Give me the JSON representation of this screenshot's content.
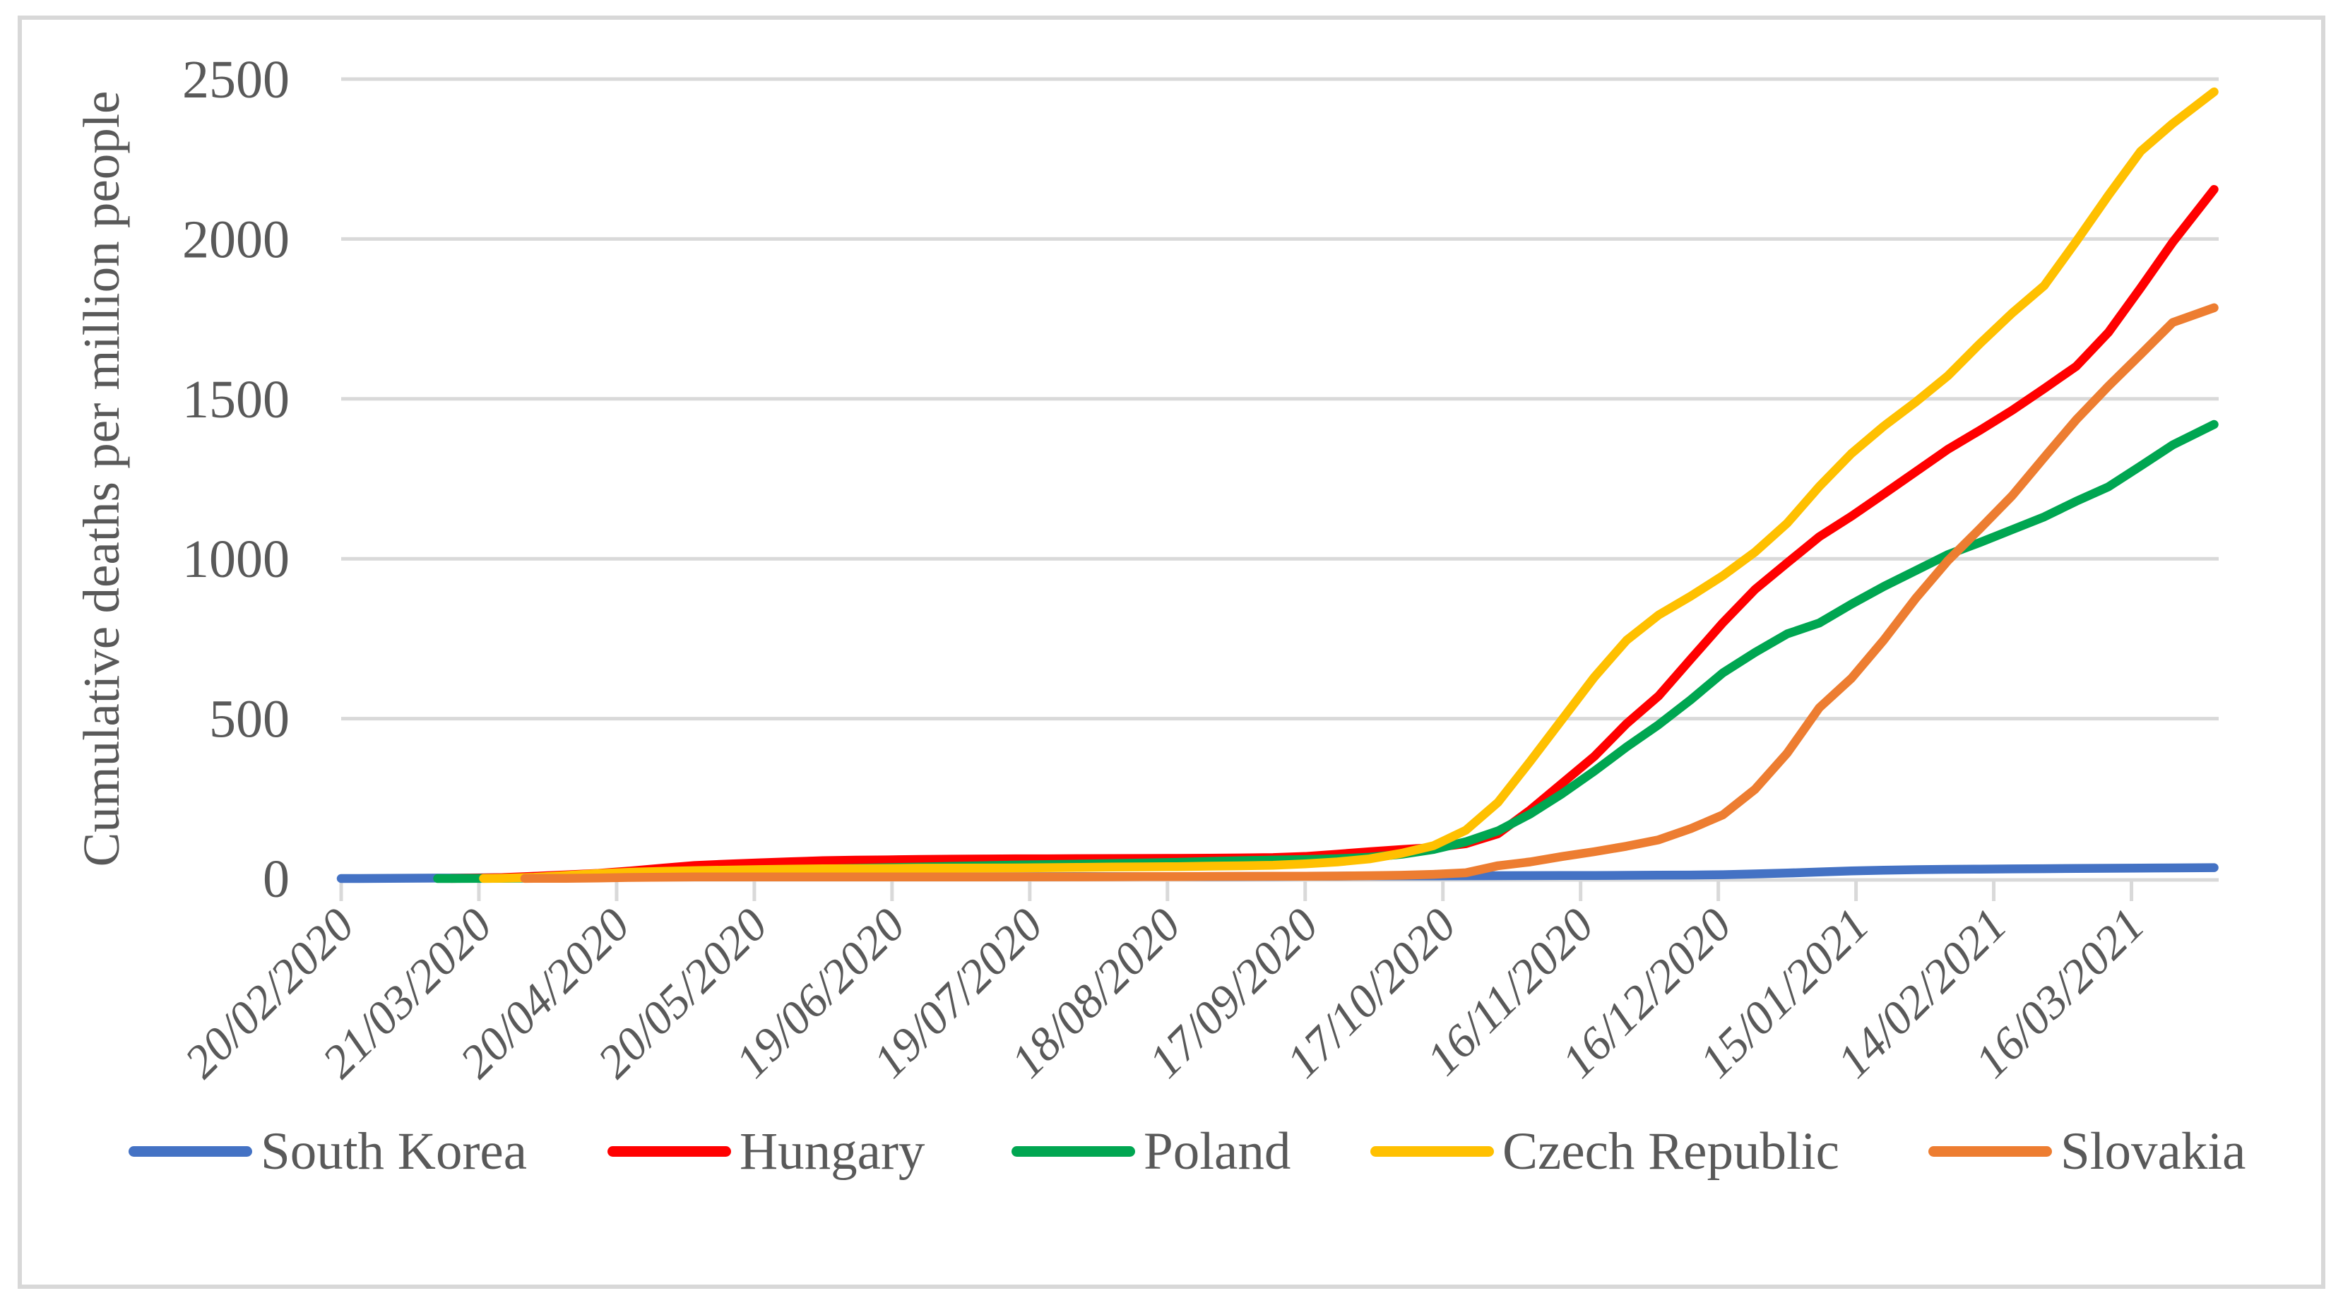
{
  "figure": {
    "background": "#FFFFFF",
    "border_color": "#D8D8D8",
    "gridline_color": "#D9D9D9",
    "axis_color": "#D9D9D9",
    "text_color": "#595959"
  },
  "chart_data": {
    "type": "line",
    "title": "",
    "xlabel": "",
    "ylabel": "Cumulative deaths per million people",
    "ylim": [
      0,
      2500
    ],
    "y_ticks": [
      0,
      500,
      1000,
      1500,
      2000,
      2500
    ],
    "grid": "horizontal",
    "legend_position": "bottom",
    "x_unit": "daily dates, dd/mm/yyyy, starting 20/02/2020",
    "x_axis_total_days": 409,
    "x_tick_days": [
      0,
      30,
      60,
      90,
      120,
      150,
      180,
      210,
      240,
      270,
      300,
      330,
      360,
      390
    ],
    "x_tick_labels": [
      "20/02/2020",
      "21/03/2020",
      "20/04/2020",
      "20/05/2020",
      "19/06/2020",
      "19/07/2020",
      "18/08/2020",
      "17/09/2020",
      "17/10/2020",
      "16/11/2020",
      "16/12/2020",
      "15/01/2021",
      "14/02/2021",
      "16/03/2021"
    ],
    "series": [
      {
        "name": "South Korea",
        "color": "#4472C4",
        "points": [
          [
            0,
            0
          ],
          [
            7,
            0.3
          ],
          [
            14,
            0.8
          ],
          [
            21,
            1.3
          ],
          [
            28,
            1.8
          ],
          [
            35,
            2.6
          ],
          [
            42,
            3.3
          ],
          [
            49,
            4
          ],
          [
            56,
            4.4
          ],
          [
            63,
            4.7
          ],
          [
            70,
            4.8
          ],
          [
            77,
            4.9
          ],
          [
            84,
            5.1
          ],
          [
            91,
            5.2
          ],
          [
            98,
            5.2
          ],
          [
            105,
            5.3
          ],
          [
            112,
            5.4
          ],
          [
            119,
            5.5
          ],
          [
            126,
            5.5
          ],
          [
            133,
            5.5
          ],
          [
            140,
            5.6
          ],
          [
            147,
            5.6
          ],
          [
            154,
            5.8
          ],
          [
            161,
            5.9
          ],
          [
            168,
            5.9
          ],
          [
            175,
            5.9
          ],
          [
            182,
            6
          ],
          [
            189,
            6.1
          ],
          [
            196,
            6.3
          ],
          [
            203,
            6.7
          ],
          [
            210,
            7.2
          ],
          [
            217,
            7.5
          ],
          [
            224,
            8.1
          ],
          [
            231,
            8.2
          ],
          [
            238,
            8.5
          ],
          [
            245,
            8.7
          ],
          [
            252,
            8.9
          ],
          [
            259,
            9.1
          ],
          [
            266,
            9.3
          ],
          [
            273,
            9.6
          ],
          [
            280,
            10
          ],
          [
            287,
            10.5
          ],
          [
            294,
            10.8
          ],
          [
            301,
            11.9
          ],
          [
            308,
            14.4
          ],
          [
            315,
            17.1
          ],
          [
            322,
            20.4
          ],
          [
            329,
            23.7
          ],
          [
            336,
            25.9
          ],
          [
            343,
            27.7
          ],
          [
            350,
            28.7
          ],
          [
            357,
            29.4
          ],
          [
            364,
            30.1
          ],
          [
            371,
            30.8
          ],
          [
            378,
            31.4
          ],
          [
            385,
            32
          ],
          [
            392,
            32.6
          ],
          [
            399,
            33.1
          ],
          [
            408,
            34
          ]
        ]
      },
      {
        "name": "Hungary",
        "color": "#FF0000",
        "points": [
          [
            24,
            0.3
          ],
          [
            28,
            1
          ],
          [
            35,
            2.7
          ],
          [
            42,
            6.8
          ],
          [
            49,
            11.3
          ],
          [
            56,
            16.1
          ],
          [
            63,
            23.3
          ],
          [
            70,
            32.3
          ],
          [
            77,
            40.6
          ],
          [
            84,
            45.1
          ],
          [
            91,
            48.7
          ],
          [
            98,
            52.3
          ],
          [
            105,
            55.8
          ],
          [
            112,
            57.5
          ],
          [
            119,
            58.2
          ],
          [
            126,
            59.7
          ],
          [
            133,
            60.6
          ],
          [
            140,
            61
          ],
          [
            147,
            61.6
          ],
          [
            154,
            61.7
          ],
          [
            161,
            62.1
          ],
          [
            168,
            62.6
          ],
          [
            175,
            62.8
          ],
          [
            182,
            63
          ],
          [
            189,
            63.6
          ],
          [
            196,
            64.2
          ],
          [
            203,
            65.3
          ],
          [
            210,
            69
          ],
          [
            217,
            75.9
          ],
          [
            224,
            83.6
          ],
          [
            231,
            90.5
          ],
          [
            238,
            96.6
          ],
          [
            245,
            108.9
          ],
          [
            252,
            140
          ],
          [
            259,
            214
          ],
          [
            266,
            298
          ],
          [
            273,
            382
          ],
          [
            280,
            484
          ],
          [
            287,
            571
          ],
          [
            294,
            686
          ],
          [
            301,
            800
          ],
          [
            308,
            904
          ],
          [
            315,
            987
          ],
          [
            322,
            1069
          ],
          [
            329,
            1133
          ],
          [
            336,
            1202
          ],
          [
            343,
            1272
          ],
          [
            350,
            1342
          ],
          [
            357,
            1402
          ],
          [
            364,
            1464
          ],
          [
            371,
            1532
          ],
          [
            378,
            1602
          ],
          [
            385,
            1708
          ],
          [
            392,
            1847
          ],
          [
            399,
            1990
          ],
          [
            408,
            2155
          ]
        ]
      },
      {
        "name": "Poland",
        "color": "#00A651",
        "points": [
          [
            21,
            0.1
          ],
          [
            28,
            0.2
          ],
          [
            35,
            0.4
          ],
          [
            42,
            1.5
          ],
          [
            49,
            3.4
          ],
          [
            56,
            7.6
          ],
          [
            63,
            11.3
          ],
          [
            70,
            16.5
          ],
          [
            77,
            20.7
          ],
          [
            84,
            23.3
          ],
          [
            91,
            25.9
          ],
          [
            98,
            27.8
          ],
          [
            105,
            29.5
          ],
          [
            112,
            31.9
          ],
          [
            119,
            34
          ],
          [
            126,
            35.8
          ],
          [
            133,
            38.2
          ],
          [
            140,
            39.9
          ],
          [
            147,
            42.2
          ],
          [
            154,
            43.7
          ],
          [
            161,
            45.3
          ],
          [
            168,
            46.9
          ],
          [
            175,
            48.6
          ],
          [
            182,
            50.5
          ],
          [
            189,
            53.3
          ],
          [
            196,
            55.8
          ],
          [
            203,
            57.7
          ],
          [
            210,
            59.5
          ],
          [
            217,
            61.9
          ],
          [
            224,
            66.4
          ],
          [
            231,
            75.7
          ],
          [
            238,
            90.9
          ],
          [
            245,
            114.9
          ],
          [
            252,
            148.8
          ],
          [
            259,
            201.7
          ],
          [
            266,
            265.4
          ],
          [
            273,
            335.9
          ],
          [
            280,
            411.3
          ],
          [
            287,
            481
          ],
          [
            294,
            559
          ],
          [
            301,
            643
          ],
          [
            308,
            707
          ],
          [
            315,
            765
          ],
          [
            322,
            799
          ],
          [
            329,
            858
          ],
          [
            336,
            913
          ],
          [
            343,
            963
          ],
          [
            350,
            1013
          ],
          [
            357,
            1051
          ],
          [
            364,
            1091
          ],
          [
            371,
            1131
          ],
          [
            378,
            1180
          ],
          [
            385,
            1225
          ],
          [
            392,
            1290
          ],
          [
            399,
            1356
          ],
          [
            408,
            1420
          ]
        ]
      },
      {
        "name": "Czech Republic",
        "color": "#FFC000",
        "points": [
          [
            31,
            0.2
          ],
          [
            35,
            0.8
          ],
          [
            42,
            3.6
          ],
          [
            49,
            9.3
          ],
          [
            56,
            15.5
          ],
          [
            63,
            19.6
          ],
          [
            70,
            22.4
          ],
          [
            77,
            24.6
          ],
          [
            84,
            26.3
          ],
          [
            91,
            27.8
          ],
          [
            98,
            29.4
          ],
          [
            105,
            30.3
          ],
          [
            112,
            30.7
          ],
          [
            119,
            31.1
          ],
          [
            126,
            32.3
          ],
          [
            133,
            32.6
          ],
          [
            140,
            32.8
          ],
          [
            147,
            33.2
          ],
          [
            154,
            34
          ],
          [
            161,
            34.9
          ],
          [
            168,
            35.8
          ],
          [
            175,
            36.4
          ],
          [
            182,
            37.1
          ],
          [
            189,
            38.6
          ],
          [
            196,
            39.7
          ],
          [
            203,
            41.2
          ],
          [
            210,
            45.7
          ],
          [
            217,
            51.9
          ],
          [
            224,
            61.5
          ],
          [
            231,
            78.9
          ],
          [
            238,
            103
          ],
          [
            245,
            151
          ],
          [
            252,
            238
          ],
          [
            259,
            366
          ],
          [
            266,
            498
          ],
          [
            273,
            630
          ],
          [
            280,
            745
          ],
          [
            287,
            824
          ],
          [
            294,
            883
          ],
          [
            301,
            947
          ],
          [
            308,
            1021
          ],
          [
            315,
            1111
          ],
          [
            322,
            1226
          ],
          [
            329,
            1329
          ],
          [
            336,
            1414
          ],
          [
            343,
            1490
          ],
          [
            350,
            1572
          ],
          [
            357,
            1673
          ],
          [
            364,
            1768
          ],
          [
            371,
            1854
          ],
          [
            378,
            1993
          ],
          [
            385,
            2137
          ],
          [
            392,
            2274
          ],
          [
            399,
            2361
          ],
          [
            408,
            2460
          ]
        ]
      },
      {
        "name": "Slovakia",
        "color": "#ED7D31",
        "points": [
          [
            40,
            0.2
          ],
          [
            42,
            0.4
          ],
          [
            49,
            0.7
          ],
          [
            56,
            1.5
          ],
          [
            63,
            3.3
          ],
          [
            70,
            4.2
          ],
          [
            77,
            4.8
          ],
          [
            84,
            5
          ],
          [
            91,
            5.1
          ],
          [
            98,
            5.1
          ],
          [
            105,
            5.1
          ],
          [
            112,
            5.1
          ],
          [
            119,
            5.1
          ],
          [
            126,
            5.1
          ],
          [
            133,
            5.1
          ],
          [
            140,
            5.1
          ],
          [
            147,
            5.2
          ],
          [
            154,
            5.3
          ],
          [
            161,
            5.4
          ],
          [
            168,
            5.5
          ],
          [
            175,
            6
          ],
          [
            182,
            6.2
          ],
          [
            189,
            6.6
          ],
          [
            196,
            6.8
          ],
          [
            203,
            7
          ],
          [
            210,
            7
          ],
          [
            217,
            7.7
          ],
          [
            224,
            8.8
          ],
          [
            231,
            10.1
          ],
          [
            238,
            13
          ],
          [
            245,
            17.9
          ],
          [
            252,
            40
          ],
          [
            259,
            52
          ],
          [
            266,
            69
          ],
          [
            273,
            84
          ],
          [
            280,
            101
          ],
          [
            287,
            121
          ],
          [
            294,
            156
          ],
          [
            301,
            199
          ],
          [
            308,
            279
          ],
          [
            315,
            392
          ],
          [
            322,
            534
          ],
          [
            329,
            626
          ],
          [
            336,
            745
          ],
          [
            343,
            876
          ],
          [
            350,
            994
          ],
          [
            357,
            1094
          ],
          [
            364,
            1197
          ],
          [
            371,
            1317
          ],
          [
            378,
            1435
          ],
          [
            385,
            1540
          ],
          [
            392,
            1639
          ],
          [
            399,
            1739
          ],
          [
            408,
            1785
          ]
        ]
      }
    ]
  }
}
